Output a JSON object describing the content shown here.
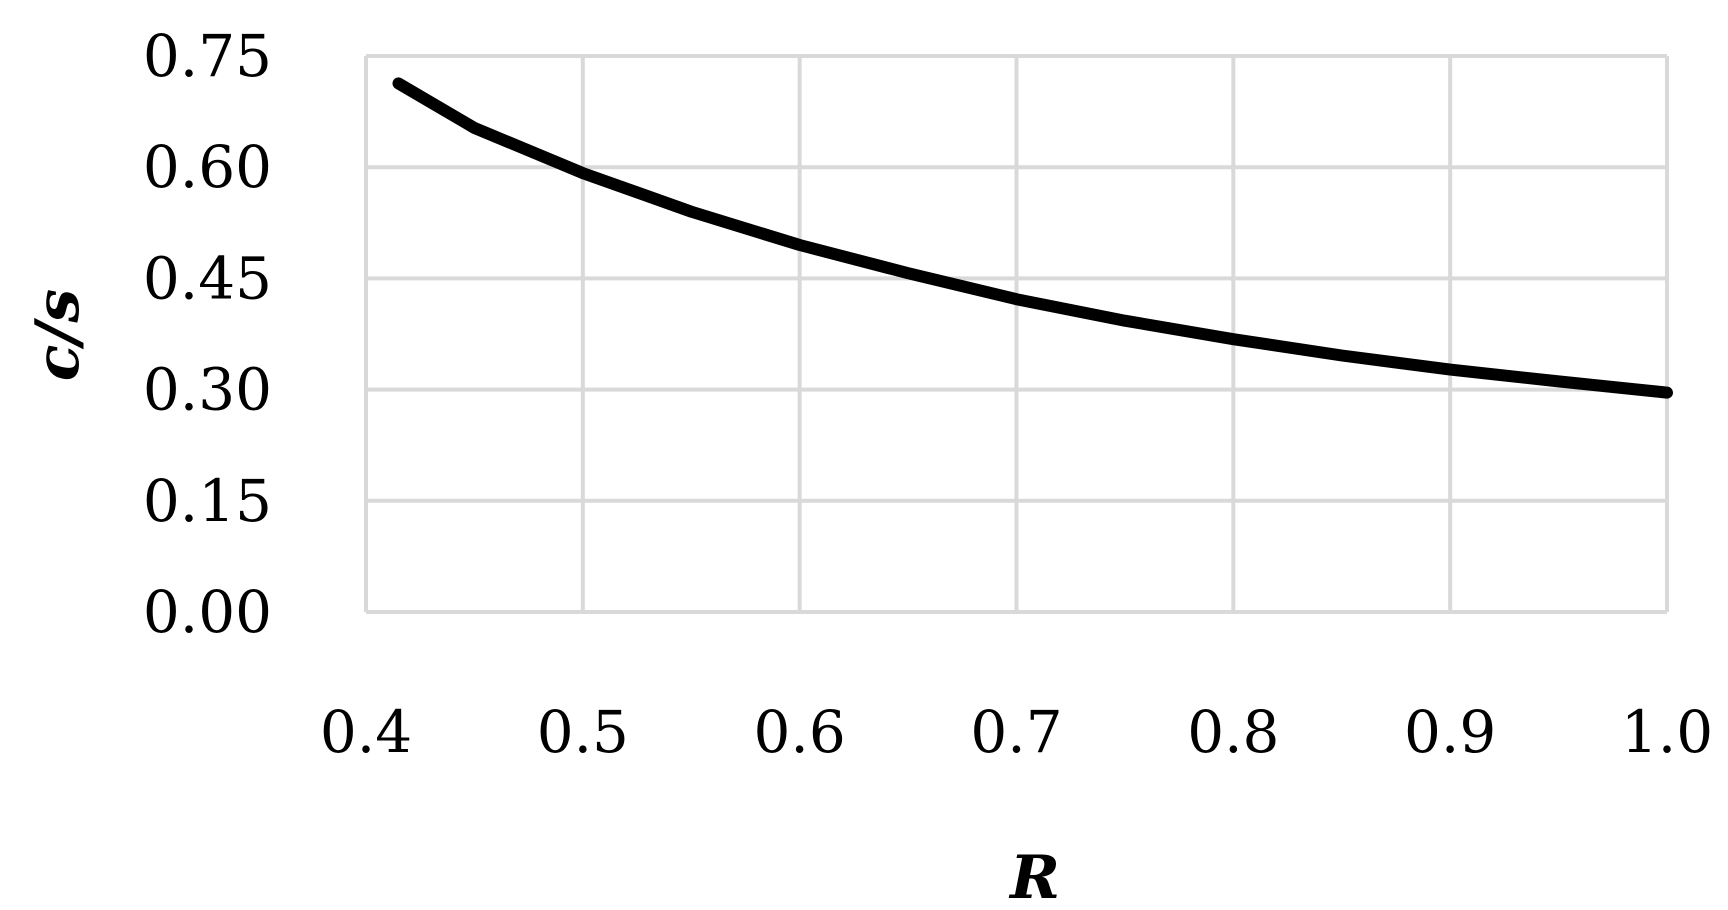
{
  "chart_data": {
    "type": "line",
    "title": "",
    "xlabel": "R",
    "ylabel": "c/s",
    "xlim": [
      0.4,
      1.0
    ],
    "ylim": [
      0.0,
      0.75
    ],
    "x_ticks": [
      "0.4",
      "0.5",
      "0.6",
      "0.7",
      "0.8",
      "0.9",
      "1.0"
    ],
    "y_ticks": [
      "0.00",
      "0.15",
      "0.30",
      "0.45",
      "0.60",
      "0.75"
    ],
    "grid": true,
    "legend": "none",
    "series": [
      {
        "color": "#000000",
        "x": [
          0.415,
          0.45,
          0.5,
          0.55,
          0.6,
          0.65,
          0.7,
          0.75,
          0.8,
          0.85,
          0.9,
          0.95,
          1.0
        ],
        "y": [
          0.713,
          0.653,
          0.592,
          0.54,
          0.495,
          0.457,
          0.422,
          0.393,
          0.368,
          0.346,
          0.327,
          0.311,
          0.296
        ]
      }
    ],
    "colors": {
      "grid": "#d9d9d9",
      "axis": "#d9d9d9",
      "line": "#000000"
    }
  }
}
